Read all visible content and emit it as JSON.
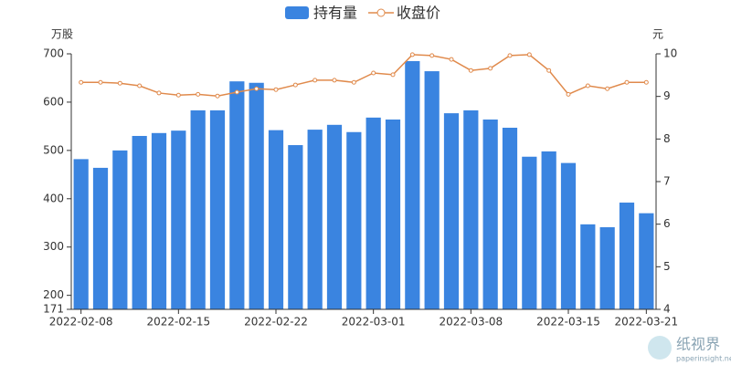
{
  "chart_data": {
    "type": "bar",
    "categories": [
      "2022-02-08",
      null,
      null,
      null,
      null,
      "2022-02-15",
      null,
      null,
      null,
      null,
      "2022-02-22",
      null,
      null,
      null,
      null,
      "2022-03-01",
      null,
      null,
      null,
      null,
      "2022-03-08",
      null,
      null,
      null,
      null,
      "2022-03-15",
      null,
      null,
      null,
      "2022-03-21"
    ],
    "series": [
      {
        "name": "持有量",
        "type": "bar",
        "color": "#3a84e0",
        "values": [
          482,
          464,
          500,
          530,
          536,
          541,
          583,
          583,
          643,
          640,
          542,
          511,
          543,
          553,
          538,
          568,
          564,
          685,
          664,
          577,
          583,
          564,
          547,
          487,
          498,
          474,
          347,
          341,
          392,
          370
        ]
      },
      {
        "name": "收盘价",
        "type": "line",
        "axis": "y2",
        "color": "#e08a4c",
        "values": [
          9.33,
          9.33,
          9.31,
          9.25,
          9.08,
          9.03,
          9.05,
          9.01,
          9.1,
          9.18,
          9.16,
          9.27,
          9.38,
          9.38,
          9.33,
          9.55,
          9.51,
          9.98,
          9.96,
          9.87,
          9.61,
          9.66,
          9.96,
          9.98,
          9.61,
          9.05,
          9.25,
          9.18,
          9.33,
          9.33
        ]
      }
    ],
    "y_label": "万股",
    "y2_label": "元",
    "ylim": [
      171,
      700
    ],
    "yticks": [
      171,
      200,
      300,
      400,
      500,
      600,
      700
    ],
    "y2lim": [
      4,
      10
    ],
    "y2ticks": [
      4,
      5,
      6,
      7,
      8,
      9,
      10
    ],
    "legend": "top"
  },
  "watermark": {
    "name": "纸视界",
    "url": "paperinsight.net"
  }
}
